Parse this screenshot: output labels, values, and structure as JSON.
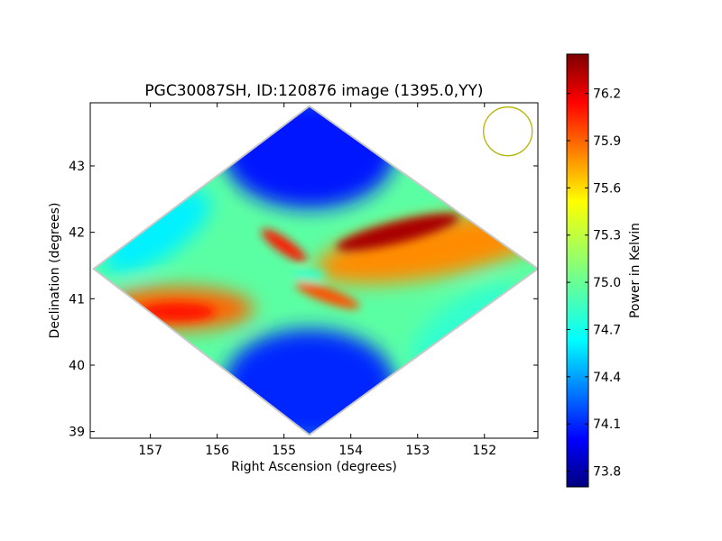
{
  "chart_data": {
    "type": "heatmap",
    "title": "PGC30087SH, ID:120876 image (1395.0,YY)",
    "xlabel": "Right Ascension (degrees)",
    "ylabel": "Declination (degrees)",
    "x_ticks": [
      "157",
      "156",
      "155",
      "154",
      "153",
      "152"
    ],
    "y_ticks": [
      "39",
      "40",
      "41",
      "42",
      "43"
    ],
    "xlim": [
      157.9,
      151.2
    ],
    "ylim": [
      38.9,
      43.95
    ],
    "x_inverted": true,
    "colorbar": {
      "label": "Power in Kelvin",
      "ticks": [
        "73.8",
        "74.1",
        "74.4",
        "74.7",
        "75.0",
        "75.3",
        "75.6",
        "75.9",
        "76.2"
      ],
      "range": [
        73.7,
        76.45
      ],
      "colormap": "jet"
    },
    "beam_marker": {
      "ra": 151.65,
      "dec": 43.52,
      "color": "#b5b500"
    },
    "map_extent": {
      "north": {
        "ra": 154.62,
        "dec": 43.9
      },
      "south": {
        "ra": 154.62,
        "dec": 38.95
      },
      "east": {
        "ra": 157.85,
        "dec": 41.45
      },
      "west": {
        "ra": 151.2,
        "dec": 41.45
      }
    },
    "features": [
      {
        "ra": 154.7,
        "dec": 43.25,
        "value": 74.0
      },
      {
        "ra": 154.6,
        "dec": 39.6,
        "value": 74.1
      },
      {
        "ra": 153.4,
        "dec": 42.0,
        "value": 76.3
      },
      {
        "ra": 152.5,
        "dec": 41.75,
        "value": 75.9
      },
      {
        "ra": 156.6,
        "dec": 40.8,
        "value": 76.1
      },
      {
        "ra": 155.0,
        "dec": 41.85,
        "value": 76.0
      },
      {
        "ra": 154.4,
        "dec": 41.0,
        "value": 75.9
      },
      {
        "ra": 157.0,
        "dec": 42.1,
        "value": 74.6
      },
      {
        "ra": 152.3,
        "dec": 40.6,
        "value": 74.8
      }
    ]
  }
}
